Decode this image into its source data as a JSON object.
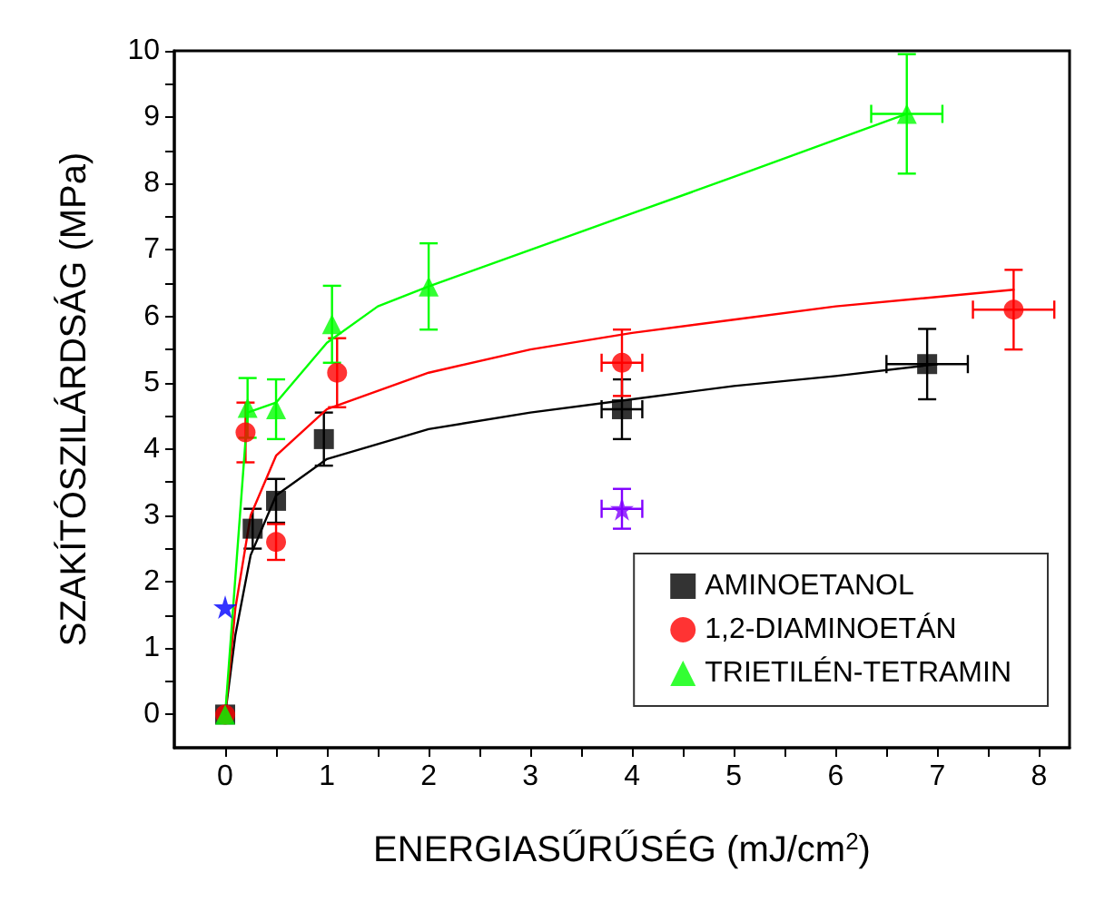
{
  "chart_data": {
    "type": "scatter",
    "xlabel": "ENERGIASŰRŰSÉG (mJ/cm$^{2}$)",
    "ylabel": "SZAKÍTÓSZILÁRDSÁG (MPa)",
    "xlim": [
      -0.5,
      8.3
    ],
    "ylim": [
      -0.5,
      10
    ],
    "xticks": [
      0,
      {
        "value": 0.5,
        "label": null
      },
      1,
      {
        "value": 1.5,
        "label": null
      },
      2,
      {
        "value": 2.5,
        "label": null
      },
      3,
      {
        "value": 3.5,
        "label": null
      },
      4,
      {
        "value": 4.5,
        "label": null
      },
      5,
      {
        "value": 5.5,
        "label": null
      },
      6,
      {
        "value": 6.5,
        "label": null
      },
      7,
      {
        "value": 7.5,
        "label": null
      },
      8
    ],
    "yticks": [
      0,
      {
        "value": 0.5,
        "label": null
      },
      1,
      {
        "value": 1.5,
        "label": null
      },
      2,
      {
        "value": 2.5,
        "label": null
      },
      3,
      {
        "value": 3.5,
        "label": null
      },
      4,
      {
        "value": 4.5,
        "label": null
      },
      5,
      {
        "value": 5.5,
        "label": null
      },
      6,
      {
        "value": 6.5,
        "label": null
      },
      7,
      {
        "value": 7.5,
        "label": null
      },
      8,
      {
        "value": 8.5,
        "label": null
      },
      9,
      {
        "value": 9.5,
        "label": null
      },
      10
    ],
    "grid": false,
    "legend": "bottom right",
    "series": [
      {
        "type": "line",
        "color": "#000000",
        "marker": "none",
        "x": [
          0,
          0.1,
          0.25,
          0.5,
          1,
          2,
          3,
          4,
          5,
          6,
          7
        ],
        "values": [
          0,
          1.2,
          2.4,
          3.3,
          3.85,
          4.3,
          4.55,
          4.75,
          4.95,
          5.1,
          5.28
        ]
      },
      {
        "type": "line",
        "color": "#ff0000",
        "marker": "none",
        "x": [
          0,
          0.1,
          0.25,
          0.5,
          1,
          2,
          3,
          4,
          5,
          6,
          7.75
        ],
        "values": [
          0,
          1.6,
          3.0,
          3.9,
          4.6,
          5.15,
          5.5,
          5.75,
          5.95,
          6.15,
          6.4
        ]
      },
      {
        "type": "line",
        "color": "#00ff00",
        "marker": "none",
        "x": [
          0,
          0.22,
          0.5,
          1,
          1.5,
          2,
          3,
          4,
          5,
          6.7
        ],
        "values": [
          0,
          4.55,
          4.7,
          5.6,
          6.15,
          6.45,
          7.0,
          7.55,
          8.1,
          9.05
        ]
      },
      {
        "name": "AMINOETANOL",
        "color": "#000000",
        "marker": "square",
        "x": [
          0,
          0.27,
          0.5,
          0.97,
          3.9,
          6.9
        ],
        "values": [
          0,
          2.8,
          3.22,
          4.15,
          4.6,
          5.28
        ],
        "errors": [
          null,
          0.3,
          0.33,
          0.4,
          0.45,
          0.53
        ],
        "xerrors": [
          null,
          null,
          null,
          null,
          0.2,
          0.4
        ]
      },
      {
        "name": "1,2-DIAMINOETÁN",
        "color": "#ff0000",
        "marker": "circle",
        "x": [
          0,
          0.2,
          0.5,
          1.1,
          3.9,
          7.75
        ],
        "values": [
          0,
          4.25,
          2.6,
          5.15,
          5.3,
          6.1
        ],
        "errors": [
          null,
          0.45,
          0.27,
          0.52,
          0.5,
          0.6
        ],
        "xerrors": [
          null,
          null,
          null,
          null,
          0.2,
          0.4
        ]
      },
      {
        "name": "TRIETILÉN-TETRAMIN",
        "color": "#00ff00",
        "marker": "triangle",
        "x": [
          0,
          0.22,
          0.5,
          1.05,
          2.0,
          6.7
        ],
        "values": [
          0,
          4.62,
          4.6,
          5.88,
          6.45,
          9.05
        ],
        "errors": [
          null,
          0.45,
          0.45,
          0.58,
          0.65,
          0.9
        ],
        "xerrors": [
          null,
          null,
          null,
          null,
          null,
          0.35
        ]
      },
      {
        "color": "#8000ff",
        "marker": "star",
        "x": [
          3.9
        ],
        "values": [
          3.1
        ],
        "errors": [
          0.3
        ],
        "xerrors": [
          0.2
        ]
      },
      {
        "color": "#0000ff",
        "marker": "star",
        "x": [
          0
        ],
        "values": [
          1.62
        ]
      }
    ]
  }
}
